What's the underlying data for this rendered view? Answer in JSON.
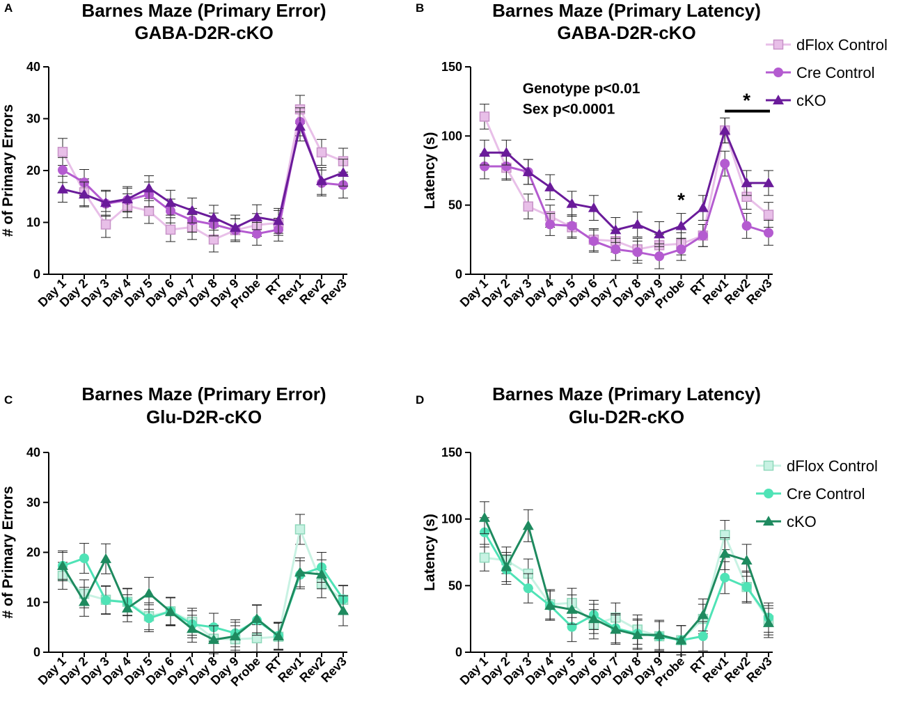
{
  "figure": {
    "categories": [
      "Day 1",
      "Day 2",
      "Day 3",
      "Day 4",
      "Day 5",
      "Day 6",
      "Day 7",
      "Day 8",
      "Day 9",
      "Probe",
      "RT",
      "Rev1",
      "Rev2",
      "Rev3"
    ],
    "palettes": {
      "gaba": {
        "dflox": "#e8bfe8",
        "cre": "#b45bd0",
        "cko": "#6a1b9a"
      },
      "glu": {
        "dflox": "#c8f2e3",
        "cre": "#4fe3b6",
        "cko": "#1e8a5f"
      }
    }
  },
  "chart_data": [
    {
      "panel": "A",
      "type": "line",
      "title": "Barnes Maze (Primary Error)",
      "subtitle": "GABA-D2R-cKO",
      "xlabel": "",
      "ylabel": "# of Primary Errors",
      "ylim": [
        0,
        40
      ],
      "yticks": [
        "0",
        "10",
        "20",
        "30",
        "40"
      ],
      "categories": [
        "Day 1",
        "Day 2",
        "Day 3",
        "Day 4",
        "Day 5",
        "Day 6",
        "Day 7",
        "Day 8",
        "Day 9",
        "Probe",
        "RT",
        "Rev1",
        "Rev2",
        "Rev3"
      ],
      "palette": "gaba",
      "zero_line": false,
      "legend": null,
      "annotations": [],
      "series": [
        {
          "name": "dFlox Control",
          "marker": "square",
          "values": [
            23.6,
            15.8,
            9.6,
            13.2,
            12.2,
            8.6,
            9.1,
            6.7,
            8.5,
            9.5,
            9.9,
            31.8,
            23.5,
            21.8
          ],
          "errors": [
            2.6,
            2.6,
            2.5,
            2.3,
            2.4,
            2.3,
            2.4,
            2.4,
            2.2,
            2.2,
            2.4,
            2.7,
            2.5,
            2.5
          ]
        },
        {
          "name": "Cre Control",
          "marker": "circle",
          "values": [
            20.1,
            17.7,
            13.6,
            14.3,
            15.4,
            12.2,
            10.4,
            9.6,
            8.5,
            7.8,
            8.6,
            29.4,
            17.6,
            17.2
          ],
          "errors": [
            2.4,
            2.5,
            2.4,
            2.3,
            2.4,
            2.3,
            2.3,
            2.2,
            2.2,
            2.2,
            2.2,
            2.7,
            2.5,
            2.5
          ]
        },
        {
          "name": "cKO",
          "marker": "triangle",
          "values": [
            16.4,
            15.4,
            13.8,
            14.5,
            16.6,
            13.8,
            12.3,
            10.9,
            9.0,
            11.0,
            10.3,
            28.5,
            18.0,
            19.6
          ],
          "errors": [
            2.5,
            2.4,
            2.4,
            2.4,
            2.4,
            2.4,
            2.4,
            2.4,
            2.4,
            2.4,
            2.4,
            2.8,
            2.6,
            2.6
          ]
        }
      ]
    },
    {
      "panel": "B",
      "type": "line",
      "title": "Barnes Maze (Primary Latency)",
      "subtitle": "GABA-D2R-cKO",
      "xlabel": "",
      "ylabel": "Latency (s)",
      "ylim": [
        0,
        150
      ],
      "yticks": [
        "0",
        "50",
        "100",
        "150"
      ],
      "categories": [
        "Day 1",
        "Day 2",
        "Day 3",
        "Day 4",
        "Day 5",
        "Day 6",
        "Day 7",
        "Day 8",
        "Day 9",
        "Probe",
        "RT",
        "Rev1",
        "Rev2",
        "Rev3"
      ],
      "palette": "gaba",
      "zero_line": false,
      "legend": "top-right",
      "annotations": [
        {
          "kind": "text",
          "text": "Genotype p<0.01",
          "at": {
            "category": "Day 3",
            "value": 135
          }
        },
        {
          "kind": "text",
          "text": "Sex p<0.0001",
          "at": {
            "category": "Day 3",
            "value": 120
          }
        },
        {
          "kind": "star",
          "text": "*",
          "at": {
            "category": "Probe",
            "value": 52
          }
        },
        {
          "kind": "bracket",
          "text": "*",
          "from": "Rev1",
          "to": "Rev3",
          "value": 118
        }
      ],
      "series": [
        {
          "name": "dFlox Control",
          "marker": "square",
          "values": [
            114,
            77,
            49,
            42,
            34,
            25,
            24,
            18,
            21,
            22,
            28,
            104,
            56,
            43
          ],
          "errors": [
            9,
            9,
            9,
            8,
            8,
            8,
            8,
            8,
            8,
            8,
            8,
            9,
            9,
            9
          ]
        },
        {
          "name": "Cre Control",
          "marker": "circle",
          "values": [
            78,
            78,
            74,
            36,
            35,
            24,
            18,
            16,
            13,
            18,
            28,
            80,
            35,
            30
          ],
          "errors": [
            9,
            9,
            9,
            8,
            8,
            8,
            8,
            8,
            9,
            8,
            8,
            9,
            9,
            9
          ]
        },
        {
          "name": "cKO",
          "marker": "triangle",
          "values": [
            88,
            88,
            74,
            63,
            51,
            48,
            32,
            36,
            29,
            35,
            48,
            104,
            66,
            66
          ],
          "errors": [
            9,
            9,
            9,
            9,
            9,
            9,
            9,
            9,
            9,
            9,
            9,
            9,
            9,
            9
          ]
        }
      ]
    },
    {
      "panel": "C",
      "type": "line",
      "title": "Barnes Maze (Primary Error)",
      "subtitle": "Glu-D2R-cKO",
      "xlabel": "",
      "ylabel": "# of Primary Errors",
      "ylim": [
        0,
        40
      ],
      "yticks": [
        "0",
        "10",
        "20",
        "30",
        "40"
      ],
      "categories": [
        "Day 1",
        "Day 2",
        "Day 3",
        "Day 4",
        "Day 5",
        "Day 6",
        "Day 7",
        "Day 8",
        "Day 9",
        "Probe",
        "RT",
        "Rev1",
        "Rev2",
        "Rev3"
      ],
      "palette": "glu",
      "zero_line": true,
      "legend": null,
      "annotations": [],
      "series": [
        {
          "name": "dFlox Control",
          "marker": "square",
          "values": [
            15.3,
            11.7,
            10.5,
            10.1,
            7.2,
            8.2,
            6.1,
            2.7,
            2.6,
            2.8,
            3.1,
            24.6,
            13.7,
            10.5
          ],
          "errors": [
            2.7,
            2.8,
            2.8,
            2.7,
            2.7,
            2.7,
            2.7,
            2.7,
            2.7,
            2.7,
            2.7,
            3.0,
            2.8,
            2.8
          ]
        },
        {
          "name": "Cre Control",
          "marker": "circle",
          "values": [
            17.3,
            18.8,
            10.4,
            10.0,
            6.8,
            8.2,
            5.6,
            5.0,
            3.8,
            6.4,
            3.3,
            15.5,
            17.0,
            10.6
          ],
          "errors": [
            3.0,
            3.0,
            2.8,
            2.7,
            2.7,
            2.8,
            2.7,
            2.8,
            2.7,
            3.0,
            2.7,
            2.8,
            3.0,
            2.8
          ]
        },
        {
          "name": "cKO",
          "marker": "triangle",
          "values": [
            17.3,
            10.1,
            18.7,
            8.8,
            11.8,
            8.1,
            4.7,
            2.5,
            3.2,
            6.7,
            3.2,
            16.0,
            15.6,
            8.3
          ],
          "errors": [
            2.7,
            2.9,
            3.0,
            2.7,
            3.2,
            2.8,
            2.7,
            2.8,
            2.8,
            2.8,
            2.7,
            2.9,
            2.9,
            3.0
          ]
        }
      ]
    },
    {
      "panel": "D",
      "type": "line",
      "title": "Barnes Maze (Primary Latency)",
      "subtitle": "Glu-D2R-cKO",
      "xlabel": "",
      "ylabel": "Latency (s)",
      "ylim": [
        0,
        150
      ],
      "yticks": [
        "0",
        "50",
        "100",
        "150"
      ],
      "categories": [
        "Day 1",
        "Day 2",
        "Day 3",
        "Day 4",
        "Day 5",
        "Day 6",
        "Day 7",
        "Day 8",
        "Day 9",
        "Probe",
        "RT",
        "Rev1",
        "Rev2",
        "Rev3"
      ],
      "palette": "glu",
      "zero_line": true,
      "legend": "top-right",
      "annotations": [],
      "series": [
        {
          "name": "dFlox Control",
          "marker": "square",
          "values": [
            71,
            69,
            59,
            36,
            37,
            21,
            26,
            17,
            12,
            9,
            25,
            88,
            49,
            24
          ],
          "errors": [
            10,
            10,
            11,
            11,
            11,
            11,
            11,
            11,
            11,
            11,
            11,
            11,
            12,
            11
          ]
        },
        {
          "name": "Cre Control",
          "marker": "circle",
          "values": [
            90,
            62,
            48,
            35,
            19,
            28,
            18,
            14,
            12,
            9,
            12,
            56,
            49,
            26
          ],
          "errors": [
            11,
            11,
            11,
            11,
            11,
            11,
            11,
            11,
            11,
            11,
            11,
            12,
            11,
            11
          ]
        },
        {
          "name": "cKO",
          "marker": "triangle",
          "values": [
            101,
            64,
            95,
            35,
            32,
            25,
            17,
            13,
            13,
            9,
            28,
            74,
            69,
            22
          ],
          "errors": [
            12,
            11,
            12,
            11,
            11,
            11,
            11,
            11,
            11,
            11,
            12,
            12,
            12,
            11
          ]
        }
      ]
    }
  ],
  "panels": [
    {
      "letter": "A",
      "title_line1": "Barnes Maze (Primary Error)",
      "title_line2": "GABA-D2R-cKO"
    },
    {
      "letter": "B",
      "title_line1": "Barnes Maze (Primary Latency)",
      "title_line2": "GABA-D2R-cKO"
    },
    {
      "letter": "C",
      "title_line1": "Barnes Maze (Primary Error)",
      "title_line2": "Glu-D2R-cKO"
    },
    {
      "letter": "D",
      "title_line1": "Barnes Maze (Primary Latency)",
      "title_line2": "Glu-D2R-cKO"
    }
  ]
}
